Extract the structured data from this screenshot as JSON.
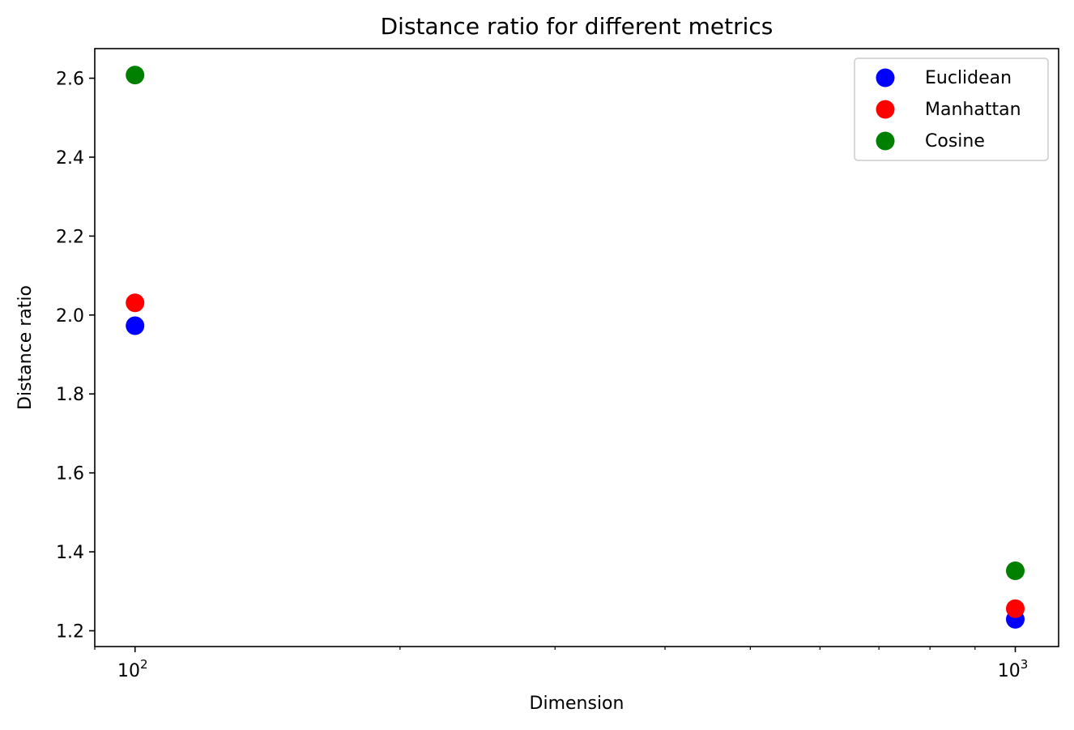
{
  "chart_data": {
    "type": "scatter",
    "title": "Distance ratio for different metrics",
    "xlabel": "Dimension",
    "ylabel": "Distance ratio",
    "xscale": "log",
    "xlim": [
      90,
      1120
    ],
    "ylim": [
      1.16,
      2.675
    ],
    "grid": false,
    "legend_position": "upper right",
    "x_ticks": [
      {
        "value": 100,
        "base": "10",
        "exp": "2"
      },
      {
        "value": 1000,
        "base": "10",
        "exp": "3"
      }
    ],
    "x_minor_ticks": [
      90,
      200,
      300,
      400,
      500,
      600,
      700,
      800,
      900
    ],
    "y_ticks": [
      {
        "value": 1.2,
        "label": "1.2"
      },
      {
        "value": 1.4,
        "label": "1.4"
      },
      {
        "value": 1.6,
        "label": "1.6"
      },
      {
        "value": 1.8,
        "label": "1.8"
      },
      {
        "value": 2.0,
        "label": "2.0"
      },
      {
        "value": 2.2,
        "label": "2.2"
      },
      {
        "value": 2.4,
        "label": "2.4"
      },
      {
        "value": 2.6,
        "label": "2.6"
      }
    ],
    "series": [
      {
        "name": "Euclidean",
        "color": "#0000ff",
        "points": [
          {
            "x": 100,
            "y": 1.973
          },
          {
            "x": 1000,
            "y": 1.229
          }
        ]
      },
      {
        "name": "Manhattan",
        "color": "#ff0000",
        "points": [
          {
            "x": 100,
            "y": 2.031
          },
          {
            "x": 1000,
            "y": 1.256
          }
        ]
      },
      {
        "name": "Cosine",
        "color": "#008000",
        "points": [
          {
            "x": 100,
            "y": 2.608
          },
          {
            "x": 1000,
            "y": 1.352
          }
        ]
      }
    ]
  }
}
